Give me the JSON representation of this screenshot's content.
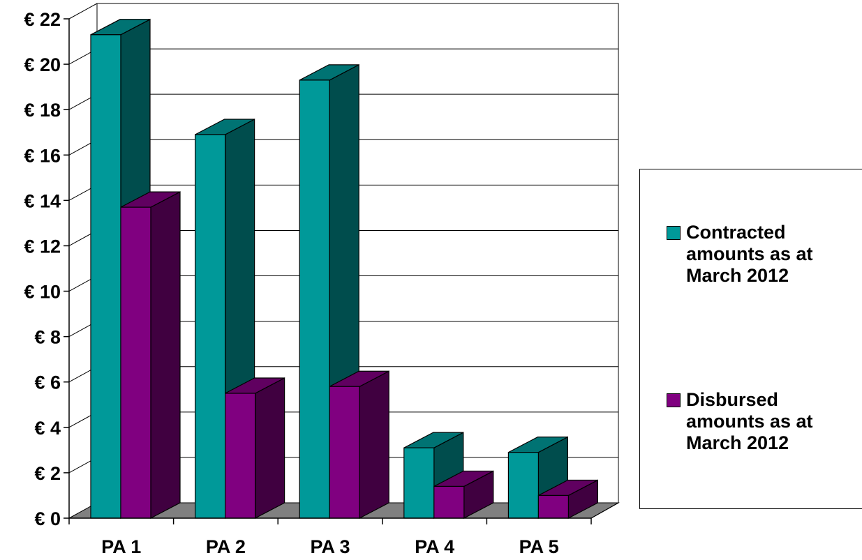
{
  "chart_data": {
    "type": "bar",
    "categories": [
      "PA 1",
      "PA 2",
      "PA 3",
      "PA 4",
      "PA 5"
    ],
    "series": [
      {
        "name": "Contracted amounts as at March 2012",
        "values": [
          21.3,
          16.9,
          19.3,
          3.1,
          2.9
        ],
        "color": "#009999"
      },
      {
        "name": "Disbursed amounts as at March 2012",
        "values": [
          13.7,
          5.5,
          5.8,
          1.4,
          1.0
        ],
        "color": "#800080"
      }
    ],
    "ylim": [
      0,
      22
    ],
    "yticks": [
      "€ 0",
      "€ 2",
      "€ 4",
      "€ 6",
      "€ 8",
      "€ 10",
      "€ 12",
      "€ 14",
      "€ 16",
      "€ 18",
      "€ 20",
      "€ 22"
    ],
    "grid": true,
    "legend_position": "right",
    "style": "3d-clustered-column",
    "colors": {
      "floor": "#808080",
      "contracted_side": "#004d4d",
      "disbursed_side": "#400040"
    }
  }
}
